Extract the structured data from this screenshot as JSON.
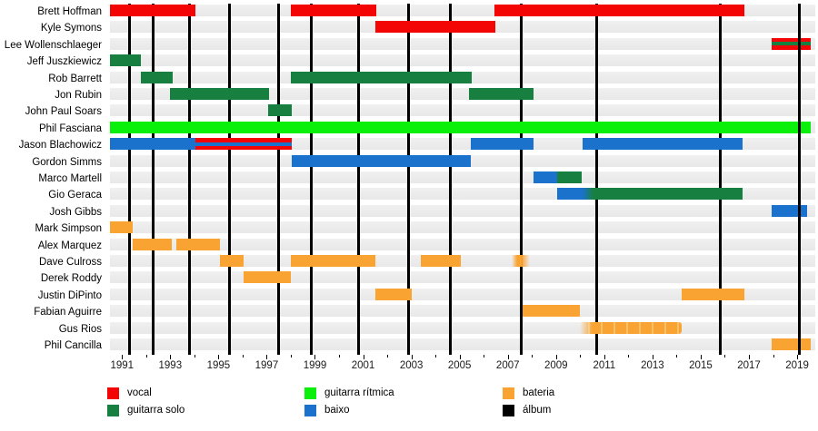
{
  "chart_data": {
    "type": "timeline",
    "title": "",
    "description": "Band member timeline (Gantt-style) with roles as colored bars and album releases as vertical black lines",
    "x_axis": {
      "min": 1990.5,
      "max": 2019.6,
      "tick_years_minor_step": 1,
      "tick_labels": [
        "1991",
        "1993",
        "1995",
        "1997",
        "1999",
        "2001",
        "2003",
        "2005",
        "2007",
        "2009",
        "2011",
        "2013",
        "2015",
        "2017",
        "2019"
      ]
    },
    "roles": {
      "vocal": "#f30505",
      "guitarra solo": "#178040",
      "guitarra ritmica": "#0af00a",
      "baixo": "#1a72cc",
      "bateria": "#f9a332",
      "album": "#000000"
    },
    "legend": [
      {
        "label": "vocal",
        "role": "vocal"
      },
      {
        "label": "guitarra solo",
        "role": "guitarra solo"
      },
      {
        "label": "guitarra rítmica",
        "role": "guitarra ritmica"
      },
      {
        "label": "baixo",
        "role": "baixo"
      },
      {
        "label": "bateria",
        "role": "bateria"
      },
      {
        "label": "álbum",
        "role": "album"
      }
    ],
    "album_lines": [
      {
        "year": 1991.3,
        "front": false
      },
      {
        "year": 1992.3,
        "front": false
      },
      {
        "year": 1993.8,
        "front": false
      },
      {
        "year": 1995.45,
        "front": false
      },
      {
        "year": 1997.5,
        "front": false
      },
      {
        "year": 1998.85,
        "front": false
      },
      {
        "year": 2000.8,
        "front": false
      },
      {
        "year": 2002.9,
        "front": false
      },
      {
        "year": 2004.6,
        "front": false
      },
      {
        "year": 2007.55,
        "front": false
      },
      {
        "year": 2010.7,
        "front": false
      },
      {
        "year": 2015.8,
        "front": false
      },
      {
        "year": 2019.1,
        "front": true
      }
    ],
    "members": [
      {
        "name": "Brett Hoffman",
        "bars": [
          {
            "start": 1990.5,
            "end": 1994.05,
            "role": "vocal"
          },
          {
            "start": 1998.0,
            "end": 2001.55,
            "role": "vocal"
          },
          {
            "start": 2006.45,
            "end": 2016.8,
            "role": "vocal"
          }
        ]
      },
      {
        "name": "Kyle Symons",
        "bars": [
          {
            "start": 2001.5,
            "end": 2006.5,
            "role": "vocal"
          }
        ]
      },
      {
        "name": "Lee Wollenschlaeger",
        "bars": [
          {
            "start": 2017.95,
            "end": 2019.55,
            "role": "vocal",
            "stripe": "guitarra solo"
          }
        ]
      },
      {
        "name": "Jeff Juszkiewicz",
        "bars": [
          {
            "start": 1990.5,
            "end": 1991.8,
            "role": "guitarra solo"
          }
        ]
      },
      {
        "name": "Rob Barrett",
        "bars": [
          {
            "start": 1991.8,
            "end": 1993.1,
            "role": "guitarra solo"
          },
          {
            "start": 1998.0,
            "end": 2005.5,
            "role": "guitarra solo"
          }
        ]
      },
      {
        "name": "Jon Rubin",
        "bars": [
          {
            "start": 1993.0,
            "end": 1997.1,
            "role": "guitarra solo"
          },
          {
            "start": 2005.4,
            "end": 2008.05,
            "role": "guitarra solo"
          }
        ]
      },
      {
        "name": "John Paul Soars",
        "bars": [
          {
            "start": 1997.05,
            "end": 1998.05,
            "role": "guitarra solo"
          }
        ]
      },
      {
        "name": "Phil Fasciana",
        "bars": [
          {
            "start": 1990.5,
            "end": 2019.55,
            "role": "guitarra ritmica"
          }
        ]
      },
      {
        "name": "Jason Blachowicz",
        "bars": [
          {
            "start": 1990.5,
            "end": 1994.05,
            "role": "baixo"
          },
          {
            "start": 1994.05,
            "end": 1998.05,
            "role": "vocal",
            "stripe": "baixo"
          },
          {
            "start": 2005.45,
            "end": 2008.05,
            "role": "baixo"
          },
          {
            "start": 2010.1,
            "end": 2016.75,
            "role": "baixo"
          }
        ]
      },
      {
        "name": "Gordon Simms",
        "bars": [
          {
            "start": 1998.05,
            "end": 2005.45,
            "role": "baixo"
          }
        ]
      },
      {
        "name": "Marco Martell",
        "bars": [
          {
            "start": 2008.05,
            "end": 2009.05,
            "role": "baixo"
          },
          {
            "start": 2009.05,
            "end": 2010.05,
            "role": "guitarra solo"
          }
        ]
      },
      {
        "name": "Gio Geraca",
        "bars": [
          {
            "start": 2009.05,
            "end": 2010.1,
            "role": "baixo"
          },
          {
            "start": 2010.1,
            "end": 2016.75,
            "role": "guitarra solo",
            "variant": "blend-baixo"
          }
        ]
      },
      {
        "name": "Josh Gibbs",
        "bars": [
          {
            "start": 2017.95,
            "end": 2019.4,
            "role": "baixo"
          }
        ]
      },
      {
        "name": "Mark Simpson",
        "bars": [
          {
            "start": 1990.5,
            "end": 1991.45,
            "role": "bateria"
          }
        ]
      },
      {
        "name": "Alex Marquez",
        "bars": [
          {
            "start": 1991.45,
            "end": 1993.05,
            "role": "bateria"
          },
          {
            "start": 1993.25,
            "end": 1995.05,
            "role": "bateria"
          }
        ]
      },
      {
        "name": "Dave Culross",
        "bars": [
          {
            "start": 1995.05,
            "end": 1996.05,
            "role": "bateria"
          },
          {
            "start": 1998.0,
            "end": 2001.5,
            "role": "bateria"
          },
          {
            "start": 2003.4,
            "end": 2005.05,
            "role": "bateria"
          },
          {
            "start": 2007.15,
            "end": 2007.9,
            "role": "bateria",
            "variant": "faded"
          }
        ]
      },
      {
        "name": "Derek Roddy",
        "bars": [
          {
            "start": 1996.05,
            "end": 1998.0,
            "role": "bateria"
          }
        ]
      },
      {
        "name": "Justin DiPinto",
        "bars": [
          {
            "start": 2001.5,
            "end": 2003.0,
            "role": "bateria"
          },
          {
            "start": 2014.2,
            "end": 2016.8,
            "role": "bateria"
          }
        ]
      },
      {
        "name": "Fabian Aguirre",
        "bars": [
          {
            "start": 2007.6,
            "end": 2010.0,
            "role": "bateria"
          }
        ]
      },
      {
        "name": "Gus Rios",
        "bars": [
          {
            "start": 2010.0,
            "end": 2014.2,
            "role": "bateria",
            "variant": "scalloped"
          }
        ]
      },
      {
        "name": "Phil Cancilla",
        "bars": [
          {
            "start": 2017.95,
            "end": 2019.55,
            "role": "bateria"
          }
        ]
      }
    ],
    "layout_colors": {
      "row_band": "#e8e8e8",
      "background": "#ffffff",
      "axis_text": "#1a1a1a"
    }
  }
}
